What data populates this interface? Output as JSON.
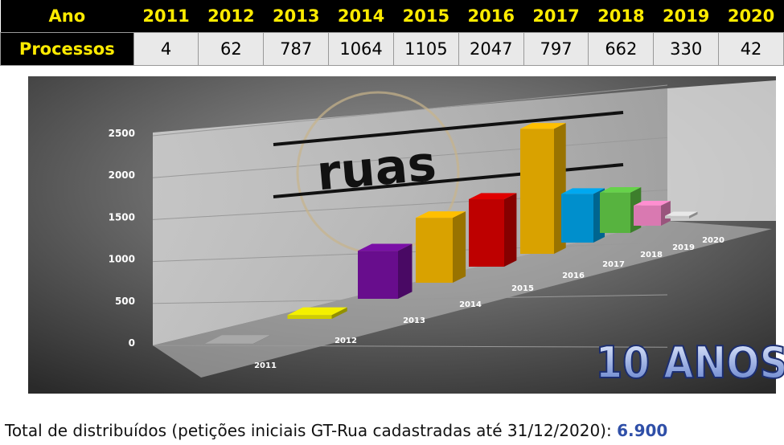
{
  "table": {
    "header_label": "Ano",
    "row_label": "Processos"
  },
  "chart_data": {
    "type": "bar3d",
    "categories": [
      "2011",
      "2012",
      "2013",
      "2014",
      "2015",
      "2016",
      "2017",
      "2018",
      "2019",
      "2020"
    ],
    "values": [
      4,
      62,
      787,
      1064,
      1105,
      2047,
      797,
      662,
      330,
      42
    ],
    "colors": [
      "#a9a9a9",
      "#f4f000",
      "#7a0fa6",
      "#ffbf00",
      "#e00000",
      "#ffbf00",
      "#00a8f0",
      "#66d24a",
      "#ff8ed0",
      "#e8e8e8"
    ],
    "ylim": [
      0,
      2500
    ],
    "yticks": [
      0,
      500,
      1000,
      1500,
      2000,
      2500
    ],
    "grid": true
  },
  "logo": "ruas",
  "badge": "10 ANOS",
  "footer": {
    "text": "Total de distribuídos (petições iniciais GT-Rua cadastradas até 31/12/2020): ",
    "total": "6.900"
  }
}
